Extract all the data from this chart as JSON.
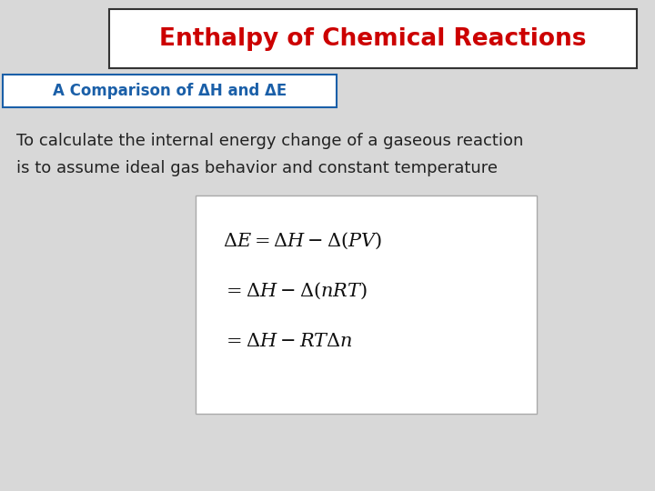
{
  "title": "Enthalpy of Chemical Reactions",
  "title_color": "#cc0000",
  "subtitle": "A Comparison of ΔH and ΔE",
  "subtitle_color": "#1a5fa8",
  "body_line1": "To calculate the internal energy change of a gaseous reaction",
  "body_line2": "is to assume ideal gas behavior and constant temperature",
  "body_color": "#222222",
  "slide_bg": "#d8d8d8",
  "title_box_bg": "#ffffff",
  "title_box_edge": "#333333",
  "subtitle_box_bg": "#ffffff",
  "subtitle_box_edge": "#1a5fa8",
  "formula_box_bg": "#ffffff",
  "formula_box_edge": "#aaaaaa",
  "formula_line1": "\\Delta E = \\Delta H - \\Delta(PV)",
  "formula_line2": "= \\Delta H - \\Delta(nRT)",
  "formula_line3": "= \\Delta H - RT\\Delta n",
  "title_fontsize": 19,
  "subtitle_fontsize": 12,
  "body_fontsize": 13,
  "formula_fontsize": 15
}
